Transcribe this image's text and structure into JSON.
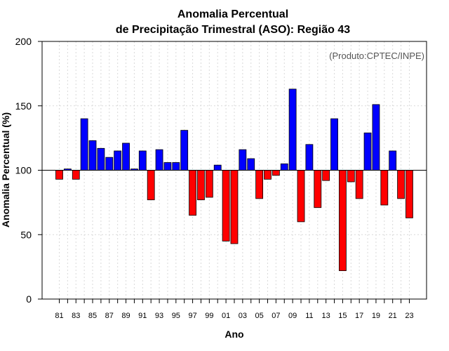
{
  "chart_data": {
    "type": "bar",
    "title": [
      "Anomalia Percentual",
      "de Precipitação Trimestral (ASO): Região 43"
    ],
    "xlabel": "Ano",
    "ylabel": "Anomalia Percentual (%)",
    "credit": "(Produto:CPTEC/INPE)",
    "ylim": [
      0,
      200
    ],
    "yticks": [
      0,
      50,
      100,
      150,
      200
    ],
    "baseline": 100,
    "positive_color": "#0000ff",
    "negative_color": "#ff0000",
    "x_labels": [
      "81",
      "83",
      "85",
      "87",
      "89",
      "91",
      "93",
      "95",
      "97",
      "99",
      "01",
      "03",
      "05",
      "07",
      "09",
      "11",
      "13",
      "15",
      "17",
      "19",
      "21",
      "23"
    ],
    "categories": [
      "81",
      "82",
      "83",
      "84",
      "85",
      "86",
      "87",
      "88",
      "89",
      "90",
      "91",
      "92",
      "93",
      "94",
      "95",
      "96",
      "97",
      "98",
      "99",
      "00",
      "01",
      "02",
      "03",
      "04",
      "05",
      "06",
      "07",
      "08",
      "09",
      "10",
      "11",
      "12",
      "13",
      "14",
      "15",
      "16",
      "17",
      "18",
      "19",
      "20",
      "21",
      "22",
      "23"
    ],
    "values": [
      93,
      101,
      93,
      140,
      123,
      117,
      110,
      115,
      121,
      101,
      115,
      77,
      116,
      106,
      106,
      131,
      65,
      77,
      79,
      104,
      45,
      43,
      116,
      109,
      78,
      93,
      96,
      105,
      163,
      60,
      120,
      71,
      92,
      140,
      22,
      91,
      78,
      129,
      151,
      73,
      115,
      78,
      63
    ]
  }
}
